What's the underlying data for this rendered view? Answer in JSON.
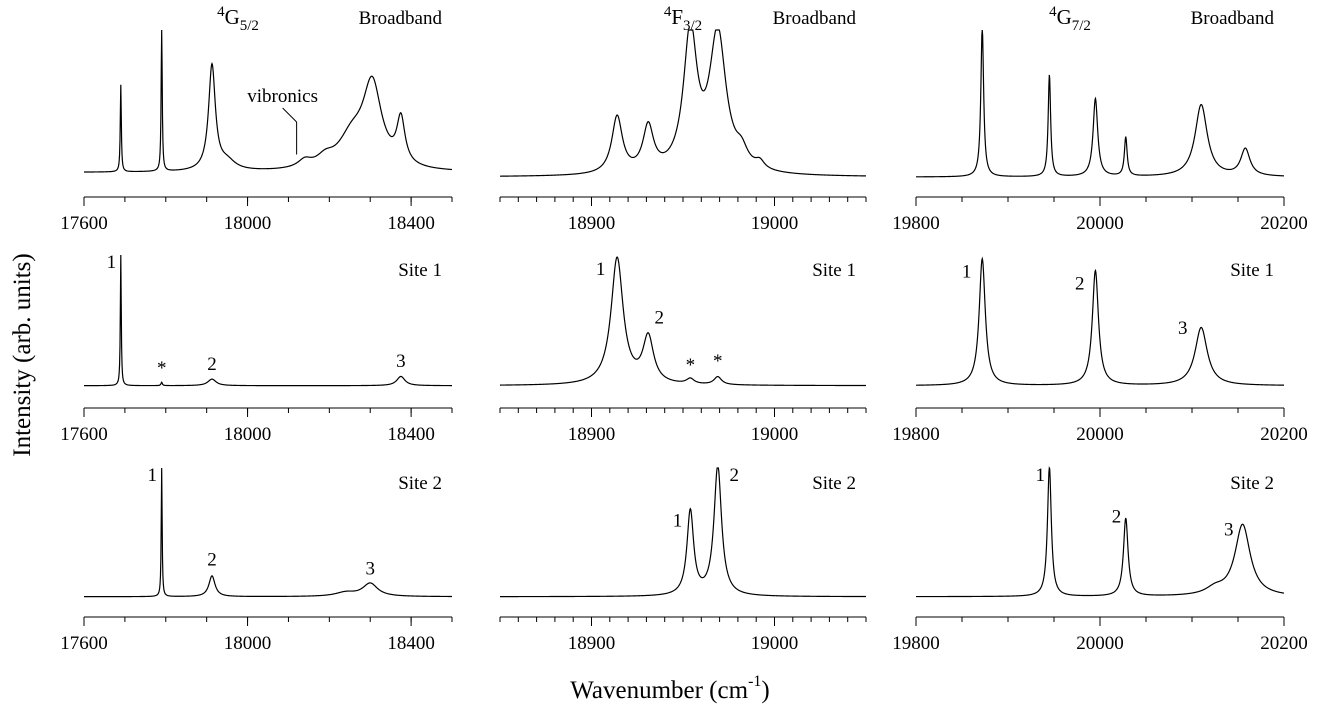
{
  "chart_data": {
    "type": "line",
    "ylabel": "Intensity (arb. units)",
    "xlabel_main": "Wavenumber (cm",
    "xlabel_sup": "-1",
    "xlabel_tail": ")",
    "columns": [
      {
        "state_sup": "4",
        "state_main": "G",
        "state_sub": "5/2",
        "xlim": [
          17600,
          18500
        ],
        "ticks": [
          "17600",
          "18000",
          "18400"
        ],
        "tick_values": [
          17600,
          18000,
          18400
        ],
        "minor_step": 100,
        "panels": [
          {
            "label": "Broadband",
            "baseline": 0.05,
            "peaks": [
              {
                "x": 17690,
                "h": 0.58,
                "w": 1.5
              },
              {
                "x": 17790,
                "h": 1.0,
                "w": 1.5
              },
              {
                "x": 17913,
                "h": 0.7,
                "w": 10
              },
              {
                "x": 17950,
                "h": 0.06,
                "w": 25
              },
              {
                "x": 18140,
                "h": 0.05,
                "w": 20
              },
              {
                "x": 18190,
                "h": 0.06,
                "w": 25
              },
              {
                "x": 18305,
                "h": 0.55,
                "w": 28
              },
              {
                "x": 18255,
                "h": 0.2,
                "w": 40
              },
              {
                "x": 18375,
                "h": 0.3,
                "w": 12
              }
            ],
            "annotations": [
              {
                "text": "vibronics",
                "x": 18120,
                "level": 0.52,
                "tip": 0.17
              }
            ],
            "peak_labels": []
          },
          {
            "label": "Site 1",
            "baseline": 0.01,
            "peaks": [
              {
                "x": 17690,
                "h": 1.0,
                "w": 1.3
              },
              {
                "x": 17790,
                "h": 0.025,
                "w": 2
              },
              {
                "x": 17913,
                "h": 0.05,
                "w": 12
              },
              {
                "x": 18375,
                "h": 0.07,
                "w": 12
              }
            ],
            "annotations": [],
            "peak_labels": [
              {
                "text": "1",
                "x": 17667,
                "level": 0.9
              },
              {
                "text": "*",
                "x": 17790,
                "level": 0.1
              },
              {
                "text": "2",
                "x": 17913,
                "level": 0.13
              },
              {
                "text": "3",
                "x": 18375,
                "level": 0.15
              }
            ]
          },
          {
            "label": "Site 2",
            "baseline": 0.01,
            "peaks": [
              {
                "x": 17790,
                "h": 1.0,
                "w": 1.3
              },
              {
                "x": 17913,
                "h": 0.16,
                "w": 9
              },
              {
                "x": 18300,
                "h": 0.1,
                "w": 22
              },
              {
                "x": 18240,
                "h": 0.03,
                "w": 30
              }
            ],
            "annotations": [],
            "peak_labels": [
              {
                "text": "1",
                "x": 17767,
                "level": 0.9
              },
              {
                "text": "2",
                "x": 17913,
                "level": 0.25
              },
              {
                "text": "3",
                "x": 18300,
                "level": 0.18
              }
            ]
          }
        ]
      },
      {
        "state_sup": "4",
        "state_main": "F",
        "state_sub": "3/2",
        "xlim": [
          18850,
          19050
        ],
        "ticks": [
          "18900",
          "19000"
        ],
        "tick_values": [
          18900,
          19000
        ],
        "minor_step": 10,
        "panels": [
          {
            "label": "Broadband",
            "baseline": 0.02,
            "peaks": [
              {
                "x": 18914,
                "h": 0.38,
                "w": 3.5
              },
              {
                "x": 18931,
                "h": 0.3,
                "w": 3.5
              },
              {
                "x": 18954,
                "h": 0.92,
                "w": 4.5
              },
              {
                "x": 18969,
                "h": 0.92,
                "w": 5.5
              },
              {
                "x": 18982,
                "h": 0.1,
                "w": 4
              },
              {
                "x": 18992,
                "h": 0.05,
                "w": 3
              }
            ],
            "annotations": [],
            "peak_labels": []
          },
          {
            "label": "Site 1",
            "baseline": 0.01,
            "peaks": [
              {
                "x": 18914,
                "h": 0.96,
                "w": 4
              },
              {
                "x": 18931,
                "h": 0.35,
                "w": 3.5
              },
              {
                "x": 18954,
                "h": 0.04,
                "w": 2.5
              },
              {
                "x": 18969,
                "h": 0.06,
                "w": 2.5
              }
            ],
            "annotations": [],
            "peak_labels": [
              {
                "text": "1",
                "x": 18905,
                "level": 0.85
              },
              {
                "text": "2",
                "x": 18937,
                "level": 0.48
              },
              {
                "text": "*",
                "x": 18954,
                "level": 0.12
              },
              {
                "text": "*",
                "x": 18969,
                "level": 0.15
              }
            ]
          },
          {
            "label": "Site 2",
            "baseline": 0.01,
            "peaks": [
              {
                "x": 18954,
                "h": 0.65,
                "w": 2.2
              },
              {
                "x": 18969,
                "h": 1.0,
                "w": 2.5
              }
            ],
            "annotations": [],
            "peak_labels": [
              {
                "text": "1",
                "x": 18947,
                "level": 0.55
              },
              {
                "text": "2",
                "x": 18978,
                "level": 0.9
              }
            ]
          }
        ]
      },
      {
        "state_sup": "4",
        "state_main": "G",
        "state_sub": "7/2",
        "xlim": [
          19800,
          20200
        ],
        "ticks": [
          "19800",
          "20000",
          "20200"
        ],
        "tick_values": [
          19800,
          20000,
          20200
        ],
        "minor_step": 50,
        "panels": [
          {
            "label": "Broadband",
            "baseline": 0.02,
            "peaks": [
              {
                "x": 19872,
                "h": 1.0,
                "w": 1.8
              },
              {
                "x": 19945,
                "h": 0.68,
                "w": 1.6
              },
              {
                "x": 19995,
                "h": 0.52,
                "w": 3
              },
              {
                "x": 20028,
                "h": 0.26,
                "w": 1.8
              },
              {
                "x": 20110,
                "h": 0.48,
                "w": 8
              },
              {
                "x": 20158,
                "h": 0.18,
                "w": 6
              }
            ],
            "annotations": [],
            "peak_labels": []
          },
          {
            "label": "Site 1",
            "baseline": 0.01,
            "peaks": [
              {
                "x": 19872,
                "h": 0.96,
                "w": 4
              },
              {
                "x": 19995,
                "h": 0.87,
                "w": 4
              },
              {
                "x": 20110,
                "h": 0.44,
                "w": 8
              }
            ],
            "annotations": [],
            "peak_labels": [
              {
                "text": "1",
                "x": 19855,
                "level": 0.83
              },
              {
                "text": "2",
                "x": 19978,
                "level": 0.74
              },
              {
                "text": "3",
                "x": 20090,
                "level": 0.4
              }
            ]
          },
          {
            "label": "Site 2",
            "baseline": 0.01,
            "peaks": [
              {
                "x": 19945,
                "h": 1.0,
                "w": 2.5
              },
              {
                "x": 20028,
                "h": 0.6,
                "w": 3
              },
              {
                "x": 20155,
                "h": 0.55,
                "w": 10
              },
              {
                "x": 20125,
                "h": 0.05,
                "w": 12
              }
            ],
            "annotations": [],
            "peak_labels": [
              {
                "text": "1",
                "x": 19935,
                "level": 0.9
              },
              {
                "text": "2",
                "x": 20018,
                "level": 0.58
              },
              {
                "text": "3",
                "x": 20140,
                "level": 0.48
              }
            ]
          }
        ]
      }
    ]
  }
}
